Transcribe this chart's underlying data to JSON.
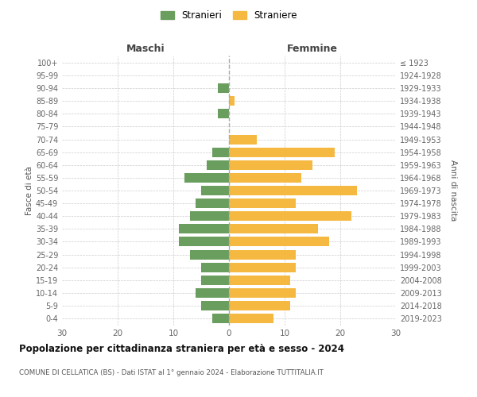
{
  "age_groups": [
    "0-4",
    "5-9",
    "10-14",
    "15-19",
    "20-24",
    "25-29",
    "30-34",
    "35-39",
    "40-44",
    "45-49",
    "50-54",
    "55-59",
    "60-64",
    "65-69",
    "70-74",
    "75-79",
    "80-84",
    "85-89",
    "90-94",
    "95-99",
    "100+"
  ],
  "birth_years": [
    "2019-2023",
    "2014-2018",
    "2009-2013",
    "2004-2008",
    "1999-2003",
    "1994-1998",
    "1989-1993",
    "1984-1988",
    "1979-1983",
    "1974-1978",
    "1969-1973",
    "1964-1968",
    "1959-1963",
    "1954-1958",
    "1949-1953",
    "1944-1948",
    "1939-1943",
    "1934-1938",
    "1929-1933",
    "1924-1928",
    "≤ 1923"
  ],
  "males": [
    3,
    5,
    6,
    5,
    5,
    7,
    9,
    9,
    7,
    6,
    5,
    8,
    4,
    3,
    0,
    0,
    2,
    0,
    2,
    0,
    0
  ],
  "females": [
    8,
    11,
    12,
    11,
    12,
    12,
    18,
    16,
    22,
    12,
    23,
    13,
    15,
    19,
    5,
    0,
    0,
    1,
    0,
    0,
    0
  ],
  "male_color": "#6a9e5e",
  "female_color": "#f5b942",
  "grid_color": "#cccccc",
  "title": "Popolazione per cittadinanza straniera per età e sesso - 2024",
  "subtitle": "COMUNE DI CELLATICA (BS) - Dati ISTAT al 1° gennaio 2024 - Elaborazione TUTTITALIA.IT",
  "header_left": "Maschi",
  "header_right": "Femmine",
  "ylabel_left": "Fasce di età",
  "ylabel_right": "Anni di nascita",
  "legend_stranieri": "Stranieri",
  "legend_straniere": "Straniere",
  "xlim": 30
}
